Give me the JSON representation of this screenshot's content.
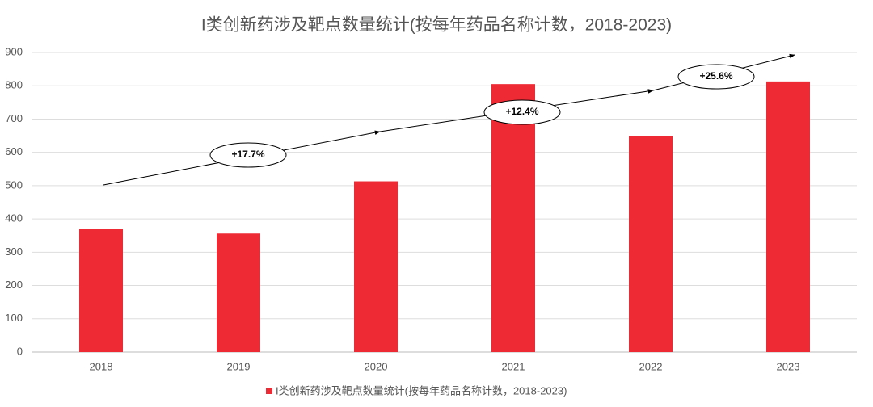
{
  "chart_data": {
    "type": "bar",
    "title": "I类创新药涉及靶点数量统计(按每年药品名称计数，2018-2023)",
    "categories": [
      "2018",
      "2019",
      "2020",
      "2021",
      "2022",
      "2023"
    ],
    "series": [
      {
        "name": "I类创新药涉及靶点数量统计(按每年药品名称计数，2018-2023)",
        "color": "#ee2b35",
        "values": [
          370,
          356,
          513,
          805,
          648,
          813
        ]
      }
    ],
    "ylim": [
      0,
      900
    ],
    "yticks": [
      0,
      100,
      200,
      300,
      400,
      500,
      600,
      700,
      800,
      900
    ],
    "grid": true,
    "legend": "bottom",
    "annotations": [
      "+17.7%",
      "+12.4%",
      "+25.6%"
    ]
  }
}
